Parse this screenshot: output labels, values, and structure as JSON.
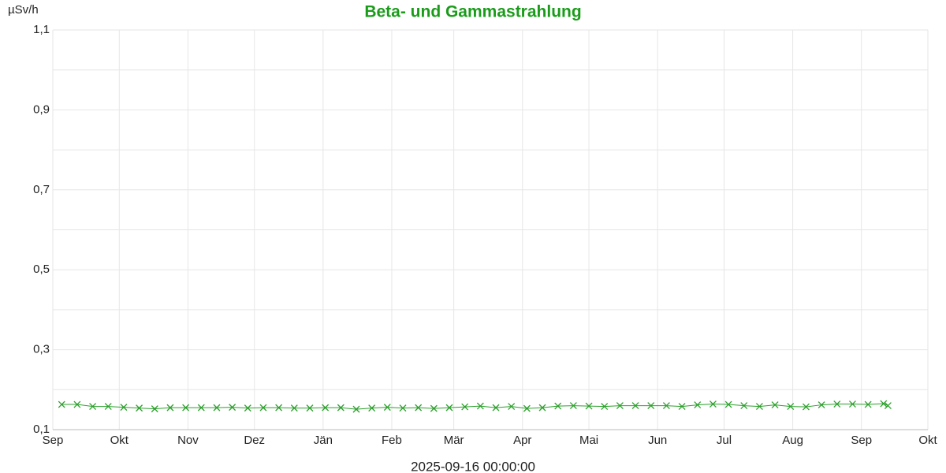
{
  "chart_data": {
    "type": "line",
    "title": "Beta- und Gammastrahlung",
    "y_label": "µSv/h",
    "x_label": "2025-09-16 00:00:00",
    "title_color": "#1a9c1a",
    "grid": true,
    "xlim": [
      0,
      395
    ],
    "xticks": [
      {
        "value": 0,
        "label": "Sep"
      },
      {
        "value": 30,
        "label": "Okt"
      },
      {
        "value": 61,
        "label": "Nov"
      },
      {
        "value": 91,
        "label": "Dez"
      },
      {
        "value": 122,
        "label": "Jän"
      },
      {
        "value": 153,
        "label": "Feb"
      },
      {
        "value": 181,
        "label": "Mär"
      },
      {
        "value": 212,
        "label": "Apr"
      },
      {
        "value": 242,
        "label": "Mai"
      },
      {
        "value": 273,
        "label": "Jun"
      },
      {
        "value": 303,
        "label": "Jul"
      },
      {
        "value": 334,
        "label": "Aug"
      },
      {
        "value": 365,
        "label": "Sep"
      },
      {
        "value": 395,
        "label": "Okt"
      }
    ],
    "ylim": [
      0.1,
      1.1
    ],
    "yticks": [
      {
        "value": 0.1,
        "label": "0,1"
      },
      {
        "value": 0.3,
        "label": "0,3"
      },
      {
        "value": 0.5,
        "label": "0,5"
      },
      {
        "value": 0.7,
        "label": "0,7"
      },
      {
        "value": 0.9,
        "label": "0,9"
      },
      {
        "value": 1.1,
        "label": "1,1"
      }
    ],
    "minor_yticks": [
      0.2,
      0.4,
      0.6,
      0.8,
      1.0
    ],
    "x": [
      4,
      11,
      18,
      25,
      32,
      39,
      46,
      53,
      60,
      67,
      74,
      81,
      88,
      95,
      102,
      109,
      116,
      123,
      130,
      137,
      144,
      151,
      158,
      165,
      172,
      179,
      186,
      193,
      200,
      207,
      214,
      221,
      228,
      235,
      242,
      249,
      256,
      263,
      270,
      277,
      284,
      291,
      298,
      305,
      312,
      319,
      326,
      333,
      340,
      347,
      354,
      361,
      368,
      375,
      377
    ],
    "series": [
      {
        "color": "#2ca02c",
        "values": [
          0.163,
          0.163,
          0.158,
          0.158,
          0.156,
          0.154,
          0.152,
          0.155,
          0.155,
          0.155,
          0.155,
          0.156,
          0.154,
          0.155,
          0.155,
          0.154,
          0.154,
          0.155,
          0.155,
          0.151,
          0.154,
          0.156,
          0.154,
          0.155,
          0.153,
          0.155,
          0.157,
          0.159,
          0.155,
          0.158,
          0.153,
          0.155,
          0.159,
          0.16,
          0.159,
          0.158,
          0.16,
          0.16,
          0.16,
          0.16,
          0.158,
          0.162,
          0.164,
          0.163,
          0.16,
          0.158,
          0.162,
          0.158,
          0.157,
          0.162,
          0.164,
          0.164,
          0.163,
          0.165,
          0.16
        ]
      }
    ]
  }
}
